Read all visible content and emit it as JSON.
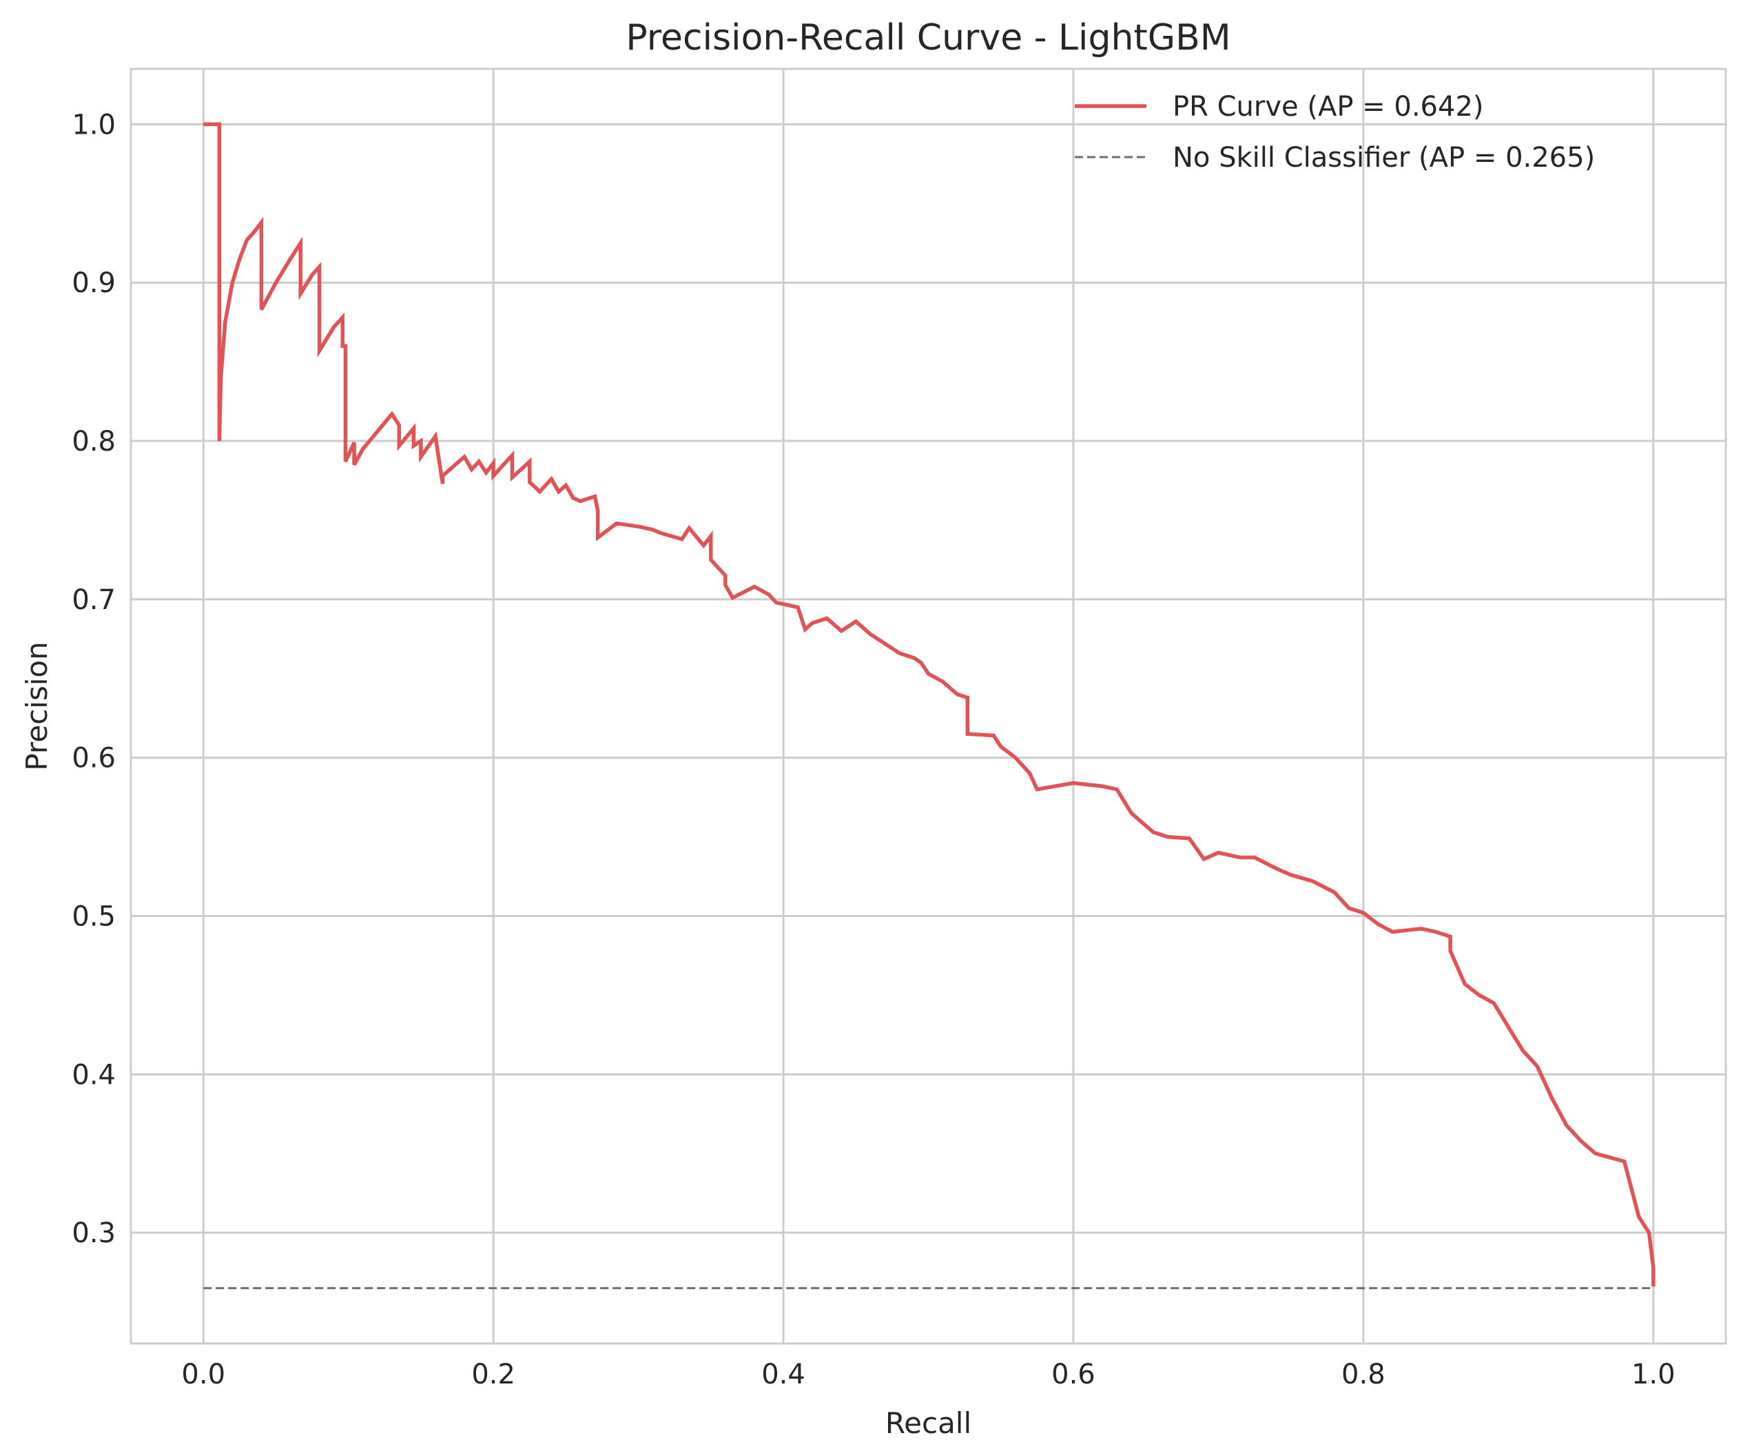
{
  "chart_data": {
    "type": "line",
    "title": "Precision-Recall Curve - LightGBM",
    "xlabel": "Recall",
    "ylabel": "Precision",
    "xlim": [
      -0.05,
      1.05
    ],
    "ylim": [
      0.23,
      1.035
    ],
    "x_ticks": [
      0.0,
      0.2,
      0.4,
      0.6,
      0.8,
      1.0
    ],
    "x_tick_labels": [
      "0.0",
      "0.2",
      "0.4",
      "0.6",
      "0.8",
      "1.0"
    ],
    "y_ticks": [
      0.3,
      0.4,
      0.5,
      0.6,
      0.7,
      0.8,
      0.9,
      1.0
    ],
    "y_tick_labels": [
      "0.3",
      "0.4",
      "0.5",
      "0.6",
      "0.7",
      "0.8",
      "0.9",
      "1.0"
    ],
    "grid": true,
    "legend_position": "top-right",
    "series": [
      {
        "name": "PR Curve (AP = 0.642)",
        "color": "#e05356",
        "style": "solid",
        "x": [
          0.0,
          0.011,
          0.011,
          0.012,
          0.015,
          0.02,
          0.025,
          0.03,
          0.035,
          0.04,
          0.04,
          0.05,
          0.06,
          0.067,
          0.067,
          0.075,
          0.08,
          0.08,
          0.09,
          0.096,
          0.096,
          0.098,
          0.098,
          0.104,
          0.104,
          0.11,
          0.13,
          0.135,
          0.135,
          0.145,
          0.145,
          0.15,
          0.15,
          0.16,
          0.165,
          0.165,
          0.18,
          0.185,
          0.19,
          0.195,
          0.2,
          0.2,
          0.213,
          0.213,
          0.225,
          0.225,
          0.232,
          0.24,
          0.245,
          0.25,
          0.255,
          0.26,
          0.27,
          0.272,
          0.272,
          0.285,
          0.3,
          0.31,
          0.315,
          0.33,
          0.335,
          0.345,
          0.35,
          0.35,
          0.36,
          0.36,
          0.365,
          0.38,
          0.39,
          0.395,
          0.41,
          0.415,
          0.42,
          0.43,
          0.44,
          0.45,
          0.46,
          0.47,
          0.48,
          0.49,
          0.495,
          0.5,
          0.51,
          0.52,
          0.527,
          0.527,
          0.545,
          0.55,
          0.56,
          0.57,
          0.575,
          0.6,
          0.62,
          0.63,
          0.64,
          0.655,
          0.665,
          0.68,
          0.69,
          0.7,
          0.715,
          0.725,
          0.74,
          0.75,
          0.765,
          0.78,
          0.79,
          0.8,
          0.81,
          0.82,
          0.83,
          0.84,
          0.85,
          0.86,
          0.86,
          0.87,
          0.88,
          0.89,
          0.9,
          0.91,
          0.92,
          0.93,
          0.94,
          0.95,
          0.96,
          0.98,
          0.99,
          0.997,
          1.0,
          1.0
        ],
        "y": [
          1.0,
          1.0,
          0.8,
          0.84,
          0.875,
          0.9,
          0.915,
          0.927,
          0.932,
          0.938,
          0.883,
          0.9,
          0.915,
          0.925,
          0.893,
          0.905,
          0.91,
          0.857,
          0.872,
          0.878,
          0.86,
          0.86,
          0.787,
          0.799,
          0.785,
          0.795,
          0.817,
          0.81,
          0.797,
          0.808,
          0.797,
          0.8,
          0.79,
          0.803,
          0.773,
          0.778,
          0.79,
          0.782,
          0.787,
          0.78,
          0.786,
          0.778,
          0.791,
          0.777,
          0.787,
          0.774,
          0.768,
          0.776,
          0.768,
          0.772,
          0.764,
          0.762,
          0.765,
          0.756,
          0.739,
          0.748,
          0.746,
          0.744,
          0.742,
          0.738,
          0.745,
          0.734,
          0.74,
          0.725,
          0.715,
          0.709,
          0.701,
          0.708,
          0.703,
          0.698,
          0.695,
          0.681,
          0.685,
          0.688,
          0.68,
          0.686,
          0.678,
          0.672,
          0.666,
          0.663,
          0.66,
          0.653,
          0.648,
          0.64,
          0.638,
          0.615,
          0.614,
          0.607,
          0.6,
          0.59,
          0.58,
          0.584,
          0.582,
          0.58,
          0.565,
          0.553,
          0.55,
          0.549,
          0.536,
          0.54,
          0.537,
          0.537,
          0.53,
          0.526,
          0.522,
          0.515,
          0.505,
          0.502,
          0.495,
          0.49,
          0.491,
          0.492,
          0.49,
          0.487,
          0.478,
          0.457,
          0.45,
          0.445,
          0.43,
          0.415,
          0.405,
          0.385,
          0.368,
          0.358,
          0.35,
          0.345,
          0.31,
          0.3,
          0.278,
          0.266
        ]
      },
      {
        "name": "No Skill Classifier (AP = 0.265)",
        "color": "#6e6e6e",
        "style": "dashed",
        "x": [
          0.0,
          1.0
        ],
        "y": [
          0.265,
          0.265
        ]
      }
    ]
  }
}
